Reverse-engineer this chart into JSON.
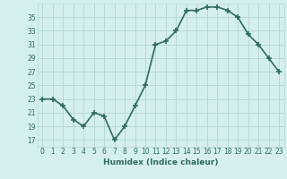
{
  "x": [
    0,
    1,
    2,
    3,
    4,
    5,
    6,
    7,
    8,
    9,
    10,
    11,
    12,
    13,
    14,
    15,
    16,
    17,
    18,
    19,
    20,
    21,
    22,
    23
  ],
  "y": [
    23,
    23,
    22,
    20,
    19,
    21,
    20.5,
    17,
    19,
    22,
    25,
    31,
    31.5,
    33,
    36,
    36,
    36.5,
    36.5,
    36,
    35,
    32.5,
    31,
    29,
    27
  ],
  "line_color": "#2e6b5e",
  "marker": "+",
  "bg_color": "#d5efee",
  "grid_color": "#b8d8d5",
  "xlabel": "Humidex (Indice chaleur)",
  "yticks": [
    17,
    19,
    21,
    23,
    25,
    27,
    29,
    31,
    33,
    35
  ],
  "ylim": [
    16.0,
    37.0
  ],
  "xlim": [
    -0.5,
    23.5
  ],
  "font_color": "#2e6b5e",
  "linewidth": 1.2,
  "markersize": 4,
  "tick_fontsize": 5.5,
  "xlabel_fontsize": 6.5
}
